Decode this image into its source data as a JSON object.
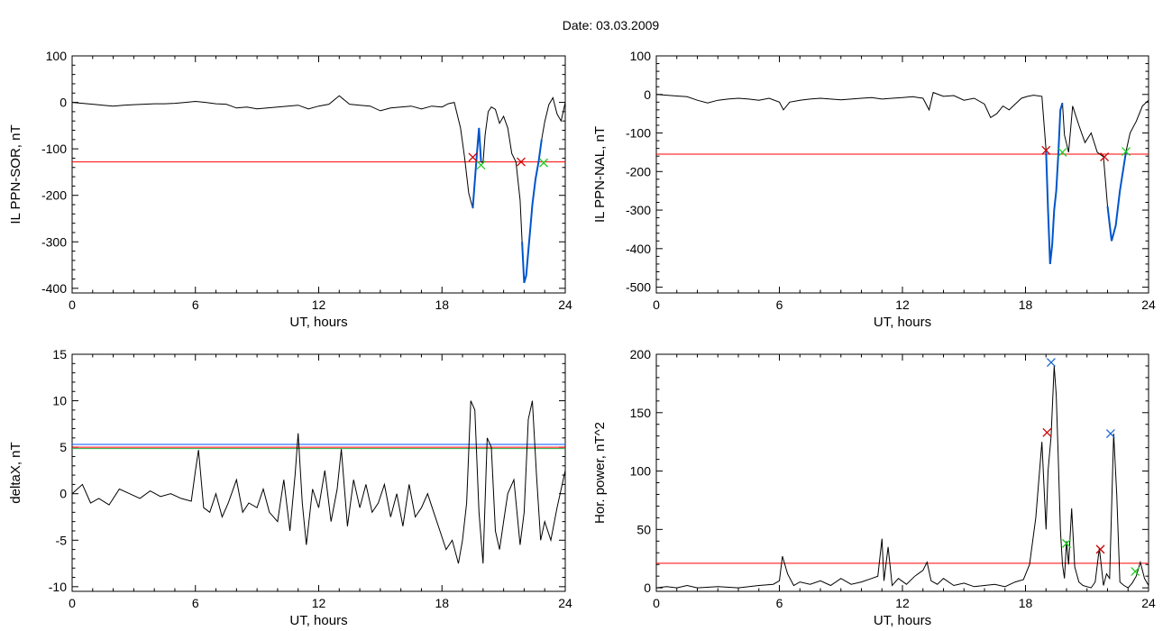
{
  "page": {
    "title": "Date:  03.03.2009"
  },
  "colors": {
    "trace": "#000000",
    "threshold_red": "#ff0000",
    "threshold_blue": "#0055ff",
    "threshold_green": "#22aa44",
    "segment": "#0055cc",
    "mark_red": "#cc0000",
    "mark_green": "#22cc22",
    "mark_blue": "#1a66cc"
  },
  "chart_data": [
    {
      "id": "il-ppn-sor",
      "type": "line",
      "xlabel": "UT, hours",
      "ylabel": "IL PPN-SOR, nT",
      "xlim": [
        0,
        24
      ],
      "ylim": [
        -410,
        100
      ],
      "xticks": [
        0,
        6,
        12,
        18,
        24
      ],
      "yticks": [
        100,
        0,
        -100,
        -200,
        -300,
        -400
      ],
      "threshold": [
        {
          "y": -128,
          "color": "red"
        }
      ],
      "series": [
        {
          "x": [
            0,
            0.5,
            1,
            1.5,
            2,
            2.5,
            3,
            3.5,
            4,
            4.5,
            5,
            5.5,
            6,
            6.5,
            7,
            7.5,
            8,
            8.5,
            9,
            9.5,
            10,
            10.5,
            11,
            11.5,
            12,
            12.5,
            13,
            13.5,
            14,
            14.5,
            15,
            15.5,
            16,
            16.5,
            17,
            17.5,
            18,
            18.3,
            18.6,
            18.9,
            19.1,
            19.3,
            19.5,
            19.7,
            19.8,
            19.9,
            20.0,
            20.1,
            20.25,
            20.4,
            20.6,
            20.8,
            21.0,
            21.2,
            21.4,
            21.6,
            21.8,
            21.9,
            22.0,
            22.1,
            22.2,
            22.3,
            22.4,
            22.55,
            22.7,
            22.85,
            23.0,
            23.2,
            23.4,
            23.6,
            23.8,
            24
          ],
          "y": [
            0,
            -2,
            -4,
            -6,
            -8,
            -6,
            -5,
            -4,
            -3,
            -3,
            -2,
            0,
            2,
            0,
            -3,
            -4,
            -12,
            -10,
            -14,
            -12,
            -10,
            -8,
            -6,
            -14,
            -8,
            -4,
            14,
            -4,
            -6,
            -8,
            -18,
            -12,
            -10,
            -8,
            -14,
            -8,
            -10,
            -3,
            0,
            -55,
            -118,
            -195,
            -228,
            -110,
            -55,
            -128,
            -130,
            -70,
            -20,
            -10,
            -15,
            -45,
            -30,
            -55,
            -110,
            -128,
            -210,
            -300,
            -388,
            -372,
            -320,
            -270,
            -220,
            -165,
            -128,
            -80,
            -42,
            -5,
            10,
            -25,
            -40,
            0
          ]
        }
      ],
      "markers": [
        {
          "x": 19.5,
          "y": -118,
          "color": "red"
        },
        {
          "x": 19.9,
          "y": -135,
          "color": "green"
        },
        {
          "x": 21.85,
          "y": -128,
          "color": "red"
        },
        {
          "x": 22.95,
          "y": -130,
          "color": "green"
        }
      ],
      "segments": [
        [
          19.5,
          19.9
        ],
        [
          21.85,
          22.95
        ]
      ]
    },
    {
      "id": "il-ppn-nal",
      "type": "line",
      "xlabel": "UT, hours",
      "ylabel": "IL PPN-NAL, nT",
      "xlim": [
        0,
        24
      ],
      "ylim": [
        -515,
        100
      ],
      "xticks": [
        0,
        6,
        12,
        18,
        24
      ],
      "yticks": [
        100,
        0,
        -100,
        -200,
        -300,
        -400,
        -500
      ],
      "threshold": [
        {
          "y": -155,
          "color": "red"
        }
      ],
      "series": [
        {
          "x": [
            0,
            0.5,
            1,
            1.5,
            2,
            2.5,
            3,
            3.5,
            4,
            4.5,
            5,
            5.5,
            6,
            6.2,
            6.5,
            7,
            7.5,
            8,
            8.5,
            9,
            9.5,
            10,
            10.5,
            11,
            11.5,
            12,
            12.5,
            13,
            13.3,
            13.5,
            14,
            14.5,
            15,
            15.5,
            16,
            16.3,
            16.6,
            16.9,
            17.2,
            17.5,
            17.8,
            18.1,
            18.4,
            18.8,
            19.0,
            19.1,
            19.2,
            19.3,
            19.4,
            19.5,
            19.6,
            19.7,
            19.8,
            19.9,
            20.1,
            20.3,
            20.6,
            20.9,
            21.2,
            21.5,
            21.8,
            22.0,
            22.2,
            22.4,
            22.6,
            22.9,
            23.1,
            23.4,
            23.7,
            24
          ],
          "y": [
            0,
            -2,
            -4,
            -6,
            -15,
            -22,
            -15,
            -12,
            -10,
            -12,
            -15,
            -10,
            -20,
            -40,
            -20,
            -15,
            -12,
            -10,
            -12,
            -14,
            -12,
            -10,
            -8,
            -12,
            -10,
            -8,
            -6,
            -10,
            -40,
            5,
            -5,
            -3,
            -15,
            -10,
            -25,
            -60,
            -50,
            -30,
            -40,
            -25,
            -10,
            -5,
            -2,
            -5,
            -145,
            -300,
            -440,
            -390,
            -300,
            -250,
            -155,
            -40,
            -22,
            -105,
            -150,
            -30,
            -80,
            -125,
            -100,
            -150,
            -162,
            -290,
            -380,
            -340,
            -250,
            -148,
            -100,
            -70,
            -30,
            -15
          ]
        }
      ],
      "markers": [
        {
          "x": 19.0,
          "y": -145,
          "color": "red"
        },
        {
          "x": 19.8,
          "y": -150,
          "color": "green"
        },
        {
          "x": 21.85,
          "y": -162,
          "color": "red"
        },
        {
          "x": 22.9,
          "y": -148,
          "color": "green"
        }
      ],
      "segments": [
        [
          19.0,
          19.8
        ],
        [
          21.85,
          22.9
        ]
      ]
    },
    {
      "id": "delta-x",
      "type": "line",
      "xlabel": "UT, hours",
      "ylabel": "deltaX, nT",
      "xlim": [
        0,
        24
      ],
      "ylim": [
        -10.5,
        15
      ],
      "xticks": [
        0,
        6,
        12,
        18,
        24
      ],
      "yticks": [
        15,
        10,
        5,
        0,
        -5,
        -10
      ],
      "threshold": [
        {
          "y": 5.3,
          "color": "blue"
        },
        {
          "y": 5.0,
          "color": "red"
        },
        {
          "y": 4.85,
          "color": "green"
        }
      ],
      "series": [
        {
          "x": [
            0,
            0.5,
            0.9,
            1.3,
            1.8,
            2.3,
            2.8,
            3.3,
            3.8,
            4.3,
            4.8,
            5.3,
            5.8,
            6.0,
            6.15,
            6.4,
            6.7,
            7.0,
            7.3,
            7.6,
            8.0,
            8.3,
            8.6,
            9.0,
            9.3,
            9.6,
            10.0,
            10.3,
            10.6,
            10.85,
            11.0,
            11.2,
            11.4,
            11.7,
            12.0,
            12.3,
            12.6,
            12.9,
            13.1,
            13.4,
            13.7,
            14.0,
            14.3,
            14.6,
            14.9,
            15.2,
            15.5,
            15.8,
            16.1,
            16.4,
            16.7,
            17.0,
            17.3,
            17.6,
            17.9,
            18.2,
            18.5,
            18.8,
            19.0,
            19.2,
            19.4,
            19.6,
            19.8,
            20.0,
            20.2,
            20.4,
            20.6,
            20.8,
            21.0,
            21.2,
            21.5,
            21.8,
            22.0,
            22.2,
            22.4,
            22.6,
            22.8,
            23.0,
            23.3,
            23.6,
            24
          ],
          "y": [
            0,
            1,
            -1,
            -0.5,
            -1.2,
            0.5,
            0,
            -0.5,
            0.3,
            -0.3,
            0,
            -0.5,
            -0.8,
            2.5,
            4.7,
            -1.5,
            -2,
            0,
            -2.5,
            -1,
            1.5,
            -2,
            -1,
            -1.5,
            0.5,
            -2,
            -3,
            1.5,
            -4,
            2,
            6.5,
            -1,
            -5.5,
            0.5,
            -1.5,
            2.5,
            -3,
            0.5,
            4.8,
            -3.5,
            1.5,
            -1.5,
            1,
            -2,
            -1,
            1,
            -2.5,
            0,
            -3.5,
            1,
            -2.5,
            -1.5,
            0,
            -2,
            -4,
            -6,
            -5,
            -7.5,
            -5,
            -1,
            10,
            9,
            -2,
            -7.5,
            6,
            5,
            -4,
            -6,
            -3,
            0,
            1.5,
            -5.5,
            -2,
            8,
            10,
            2,
            -5,
            -3,
            -5,
            -1.5,
            2.5
          ]
        }
      ],
      "markers": [],
      "segments": []
    },
    {
      "id": "hor-power",
      "type": "line",
      "xlabel": "UT, hours",
      "ylabel": "Hor. power, nT^2",
      "xlim": [
        0,
        24
      ],
      "ylim": [
        -3,
        200
      ],
      "xticks": [
        0,
        6,
        12,
        18,
        24
      ],
      "yticks": [
        200,
        150,
        100,
        50,
        0
      ],
      "threshold": [
        {
          "y": 21,
          "color": "red"
        }
      ],
      "series": [
        {
          "x": [
            0,
            0.5,
            1,
            1.5,
            2,
            3,
            4,
            5,
            5.7,
            6.0,
            6.15,
            6.4,
            6.7,
            7,
            7.5,
            8,
            8.5,
            9,
            9.5,
            10,
            10.5,
            10.8,
            11.0,
            11.1,
            11.3,
            11.5,
            11.8,
            12.2,
            12.6,
            13.0,
            13.2,
            13.4,
            13.7,
            14,
            14.5,
            15,
            15.5,
            16,
            16.5,
            17,
            17.5,
            17.9,
            18.2,
            18.5,
            18.8,
            19.0,
            19.1,
            19.25,
            19.4,
            19.5,
            19.6,
            19.7,
            19.8,
            19.9,
            20.0,
            20.1,
            20.25,
            20.4,
            20.6,
            20.8,
            21.0,
            21.2,
            21.4,
            21.6,
            21.8,
            21.95,
            22.1,
            22.3,
            22.45,
            22.6,
            22.8,
            23.0,
            23.2,
            23.4,
            23.6,
            23.8,
            24
          ],
          "y": [
            0,
            1,
            0,
            2,
            0,
            1,
            0,
            2,
            3,
            6,
            27,
            12,
            2,
            5,
            3,
            6,
            2,
            8,
            3,
            5,
            8,
            10,
            42,
            6,
            35,
            2,
            8,
            3,
            10,
            15,
            22,
            6,
            3,
            8,
            2,
            4,
            1,
            2,
            3,
            1,
            5,
            7,
            20,
            60,
            125,
            50,
            100,
            130,
            190,
            165,
            110,
            50,
            20,
            8,
            40,
            20,
            68,
            18,
            5,
            2,
            1,
            0,
            5,
            34,
            2,
            12,
            8,
            132,
            80,
            5,
            2,
            0,
            4,
            10,
            22,
            8,
            2
          ]
        }
      ],
      "markers": [
        {
          "x": 19.05,
          "y": 133,
          "color": "red"
        },
        {
          "x": 19.25,
          "y": 193,
          "color": "blue"
        },
        {
          "x": 20.0,
          "y": 38,
          "color": "green"
        },
        {
          "x": 21.65,
          "y": 33,
          "color": "red"
        },
        {
          "x": 22.15,
          "y": 132,
          "color": "blue"
        },
        {
          "x": 23.35,
          "y": 14,
          "color": "green"
        }
      ],
      "segments": []
    }
  ]
}
